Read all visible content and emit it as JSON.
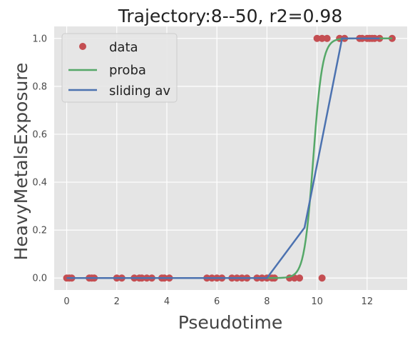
{
  "chart_data": {
    "type": "scatter",
    "title": "Trajectory:8--50, r2=0.98",
    "xlabel": "Pseudotime",
    "ylabel": "HeavyMetalsExposure",
    "xlim": [
      -0.5,
      13.6
    ],
    "ylim": [
      -0.05,
      1.05
    ],
    "xticks": [
      0,
      2,
      4,
      6,
      8,
      10,
      12
    ],
    "yticks": [
      0.0,
      0.2,
      0.4,
      0.6,
      0.8,
      1.0
    ],
    "grid": true,
    "legend_position": "top-left",
    "series": [
      {
        "name": "data",
        "kind": "points",
        "color": "#c44e52",
        "points": [
          [
            0.0,
            0
          ],
          [
            0.1,
            0
          ],
          [
            0.2,
            0
          ],
          [
            0.9,
            0
          ],
          [
            1.0,
            0
          ],
          [
            1.1,
            0
          ],
          [
            2.0,
            0
          ],
          [
            2.2,
            0
          ],
          [
            2.7,
            0
          ],
          [
            2.9,
            0
          ],
          [
            3.0,
            0
          ],
          [
            3.2,
            0
          ],
          [
            3.4,
            0
          ],
          [
            3.8,
            0
          ],
          [
            3.9,
            0
          ],
          [
            4.1,
            0
          ],
          [
            5.6,
            0
          ],
          [
            5.8,
            0
          ],
          [
            6.0,
            0
          ],
          [
            6.2,
            0
          ],
          [
            6.6,
            0
          ],
          [
            6.8,
            0
          ],
          [
            7.0,
            0
          ],
          [
            7.2,
            0
          ],
          [
            7.6,
            0
          ],
          [
            7.8,
            0
          ],
          [
            8.0,
            0
          ],
          [
            8.2,
            0
          ],
          [
            8.3,
            0
          ],
          [
            8.9,
            0
          ],
          [
            9.1,
            0
          ],
          [
            9.3,
            0
          ],
          [
            10.2,
            0
          ],
          [
            10.0,
            1
          ],
          [
            10.2,
            1
          ],
          [
            10.4,
            1
          ],
          [
            10.9,
            1
          ],
          [
            11.1,
            1
          ],
          [
            11.7,
            1
          ],
          [
            11.8,
            1
          ],
          [
            12.0,
            1
          ],
          [
            12.1,
            1
          ],
          [
            12.2,
            1
          ],
          [
            12.3,
            1
          ],
          [
            12.5,
            1
          ],
          [
            13.0,
            1
          ]
        ]
      },
      {
        "name": "proba",
        "kind": "logistic",
        "color": "#55a868",
        "x_range": [
          0.0,
          13.0
        ],
        "midpoint": 9.85,
        "steepness": 5.5
      },
      {
        "name": "sliding av",
        "kind": "line",
        "color": "#4c72b0",
        "points": [
          [
            0.0,
            0
          ],
          [
            8.0,
            0
          ],
          [
            9.5,
            0.21
          ],
          [
            11.0,
            1.0
          ],
          [
            12.5,
            1.0
          ]
        ]
      }
    ]
  }
}
